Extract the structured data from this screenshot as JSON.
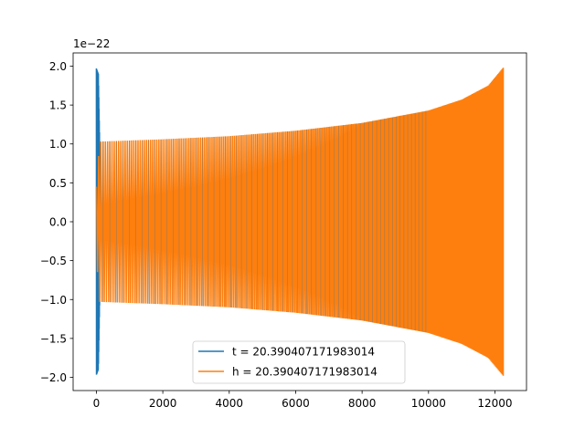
{
  "chart_data": {
    "type": "line",
    "title": "",
    "xlabel": "",
    "ylabel": "",
    "y_scale_label": "1e−22",
    "xlim": [
      -700,
      12950
    ],
    "ylim": [
      -2.17,
      2.17
    ],
    "x_ticks": [
      {
        "value": 0,
        "label": "0"
      },
      {
        "value": 2000,
        "label": "2000"
      },
      {
        "value": 4000,
        "label": "4000"
      },
      {
        "value": 6000,
        "label": "6000"
      },
      {
        "value": 8000,
        "label": "8000"
      },
      {
        "value": 10000,
        "label": "10000"
      },
      {
        "value": 12000,
        "label": "12000"
      }
    ],
    "y_ticks": [
      {
        "value": 2.0,
        "label": "2.0"
      },
      {
        "value": 1.5,
        "label": "1.5"
      },
      {
        "value": 1.0,
        "label": "1.0"
      },
      {
        "value": 0.5,
        "label": "0.5"
      },
      {
        "value": 0.0,
        "label": "0.0"
      },
      {
        "value": -0.5,
        "label": "−0.5"
      },
      {
        "value": -1.0,
        "label": "−1.0"
      },
      {
        "value": -1.5,
        "label": "−1.5"
      },
      {
        "value": -2.0,
        "label": "−2.0"
      }
    ],
    "grid": false,
    "legend_position": "lower-center",
    "series": [
      {
        "name": "t = 20.390407171983014",
        "color": "#1f77b4",
        "envelope": {
          "x": [
            0,
            60,
            100
          ],
          "amplitude": [
            1.97,
            1.9,
            1.0
          ]
        }
      },
      {
        "name": "h = 20.390407171983014",
        "color": "#ff7f0e",
        "envelope": {
          "x": [
            0,
            100,
            2000,
            4000,
            6000,
            8000,
            10000,
            11000,
            11800,
            12250
          ],
          "amplitude": [
            0.45,
            1.03,
            1.06,
            1.1,
            1.17,
            1.27,
            1.43,
            1.57,
            1.75,
            1.98
          ]
        }
      }
    ]
  }
}
